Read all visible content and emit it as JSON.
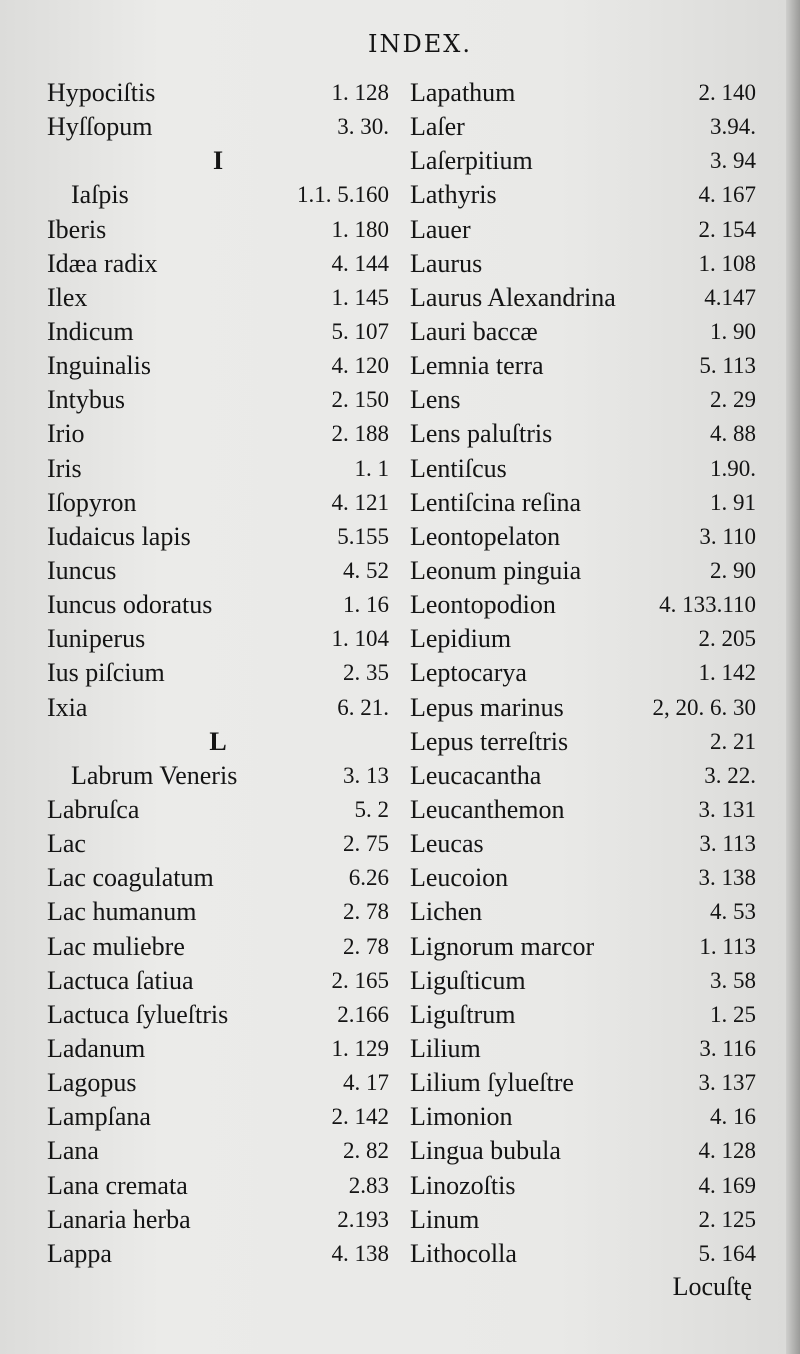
{
  "title": "INDEX.",
  "left": [
    {
      "name": "Hypociſtis",
      "ref": "1. 128"
    },
    {
      "name": "Hyſſopum",
      "ref": "3. 30."
    },
    {
      "heading": "I"
    },
    {
      "name": "Iaſpis",
      "ref": "1.1. 5.160",
      "indent": true
    },
    {
      "name": "Iberis",
      "ref": "1. 180"
    },
    {
      "name": "Idæa radix",
      "ref": "4. 144"
    },
    {
      "name": "Ilex",
      "ref": "1. 145"
    },
    {
      "name": "Indicum",
      "ref": "5. 107"
    },
    {
      "name": "Inguinalis",
      "ref": "4. 120"
    },
    {
      "name": "Intybus",
      "ref": "2. 150"
    },
    {
      "name": "Irio",
      "ref": "2. 188"
    },
    {
      "name": "Iris",
      "ref": "1. 1"
    },
    {
      "name": "Iſopyron",
      "ref": "4. 121"
    },
    {
      "name": "Iudaicus lapis",
      "ref": "5.155"
    },
    {
      "name": "Iuncus",
      "ref": "4. 52"
    },
    {
      "name": "Iuncus odoratus",
      "ref": "1. 16"
    },
    {
      "name": "Iuniperus",
      "ref": "1. 104"
    },
    {
      "name": "Ius piſcium",
      "ref": "2. 35"
    },
    {
      "name": "Ixia",
      "ref": "6. 21."
    },
    {
      "heading": "L"
    },
    {
      "name": "Labrum Veneris",
      "ref": "3. 13",
      "indent": true
    },
    {
      "name": "Labruſca",
      "ref": "5. 2"
    },
    {
      "name": "Lac",
      "ref": "2. 75"
    },
    {
      "name": "Lac coagulatum",
      "ref": "6.26"
    },
    {
      "name": "Lac humanum",
      "ref": "2. 78"
    },
    {
      "name": "Lac muliebre",
      "ref": "2. 78"
    },
    {
      "name": "Lactuca ſatiua",
      "ref": "2. 165"
    },
    {
      "name": "Lactuca ſylueſtris",
      "ref": "2.166"
    },
    {
      "name": "Ladanum",
      "ref": "1. 129"
    },
    {
      "name": "Lagopus",
      "ref": "4. 17"
    },
    {
      "name": "Lampſana",
      "ref": "2. 142"
    },
    {
      "name": "Lana",
      "ref": "2. 82"
    },
    {
      "name": "Lana cremata",
      "ref": "2.83"
    },
    {
      "name": "Lanaria herba",
      "ref": "2.193"
    },
    {
      "name": "Lappa",
      "ref": "4. 138"
    }
  ],
  "right": [
    {
      "name": "Lapathum",
      "ref": "2. 140"
    },
    {
      "name": "Laſer",
      "ref": "3.94."
    },
    {
      "name": "Laſerpitium",
      "ref": "3. 94"
    },
    {
      "name": "Lathyris",
      "ref": "4. 167"
    },
    {
      "name": "Lauer",
      "ref": "2. 154"
    },
    {
      "name": "Laurus",
      "ref": "1. 108"
    },
    {
      "name": "Laurus Alexandrina",
      "ref": "4.147"
    },
    {
      "name": "Lauri baccæ",
      "ref": "1. 90"
    },
    {
      "name": "Lemnia terra",
      "ref": "5. 113"
    },
    {
      "name": "Lens",
      "ref": "2. 29"
    },
    {
      "name": "Lens paluſtris",
      "ref": "4. 88"
    },
    {
      "name": "Lentiſcus",
      "ref": "1.90."
    },
    {
      "name": "Lentiſcina reſina",
      "ref": "1. 91"
    },
    {
      "name": "Leontopelaton",
      "ref": "3. 110"
    },
    {
      "name": "Leonum pinguia",
      "ref": "2. 90"
    },
    {
      "name": "Leontopodion",
      "ref": "4. 133.110"
    },
    {
      "name": "Lepidium",
      "ref": "2. 205"
    },
    {
      "name": "Leptocarya",
      "ref": "1. 142"
    },
    {
      "name": "Lepus marinus",
      "ref": "2, 20. 6. 30"
    },
    {
      "name": "Lepus terreſtris",
      "ref": "2. 21"
    },
    {
      "name": "Leucacantha",
      "ref": "3. 22."
    },
    {
      "name": "Leucanthemon",
      "ref": "3. 131"
    },
    {
      "name": "Leucas",
      "ref": "3. 113"
    },
    {
      "name": "Leucoion",
      "ref": "3. 138"
    },
    {
      "name": "Lichen",
      "ref": "4. 53"
    },
    {
      "name": "Lignorum marcor",
      "ref": "1. 113"
    },
    {
      "name": "Liguſticum",
      "ref": "3. 58"
    },
    {
      "name": "Liguſtrum",
      "ref": "1. 25"
    },
    {
      "name": "Lilium",
      "ref": "3. 116"
    },
    {
      "name": "Lilium ſylueſtre",
      "ref": "3. 137"
    },
    {
      "name": "Limonion",
      "ref": "4. 16"
    },
    {
      "name": "Lingua bubula",
      "ref": "4. 128"
    },
    {
      "name": "Linozoſtis",
      "ref": "4. 169"
    },
    {
      "name": "Linum",
      "ref": "2. 125"
    },
    {
      "name": "Lithocolla",
      "ref": "5. 164"
    }
  ],
  "catchword": "Locuſtę"
}
